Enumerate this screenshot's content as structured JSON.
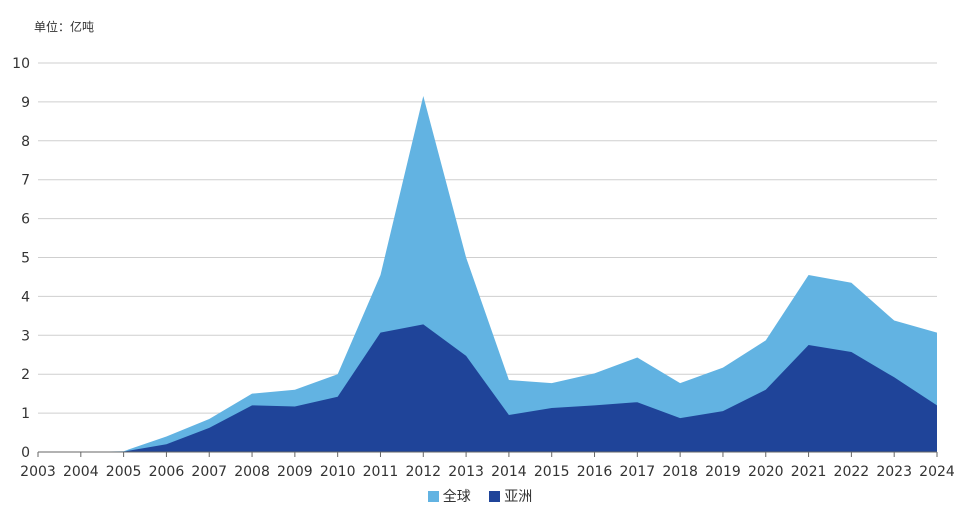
{
  "unit_label": "单位：亿吨",
  "colors": {
    "global": "#62b3e2",
    "asia": "#1f4499",
    "grid": "#cfcfcf",
    "axis": "#666666"
  },
  "chart_data": {
    "type": "area",
    "title": "",
    "ylabel": "单位：亿吨",
    "xlabel": "",
    "ylim": [
      0,
      10
    ],
    "yticks": [
      0,
      1,
      2,
      3,
      4,
      5,
      6,
      7,
      8,
      9,
      10
    ],
    "categories": [
      "2003",
      "2004",
      "2005",
      "2006",
      "2007",
      "2008",
      "2009",
      "2010",
      "2011",
      "2012",
      "2013",
      "2014",
      "2015",
      "2016",
      "2017",
      "2018",
      "2019",
      "2020",
      "2021",
      "2022",
      "2023",
      "2024"
    ],
    "series": [
      {
        "name": "全球",
        "values": [
          0,
          0,
          0.02,
          0.4,
          0.85,
          1.5,
          1.6,
          2.0,
          4.55,
          9.15,
          5.0,
          1.85,
          1.77,
          2.02,
          2.43,
          1.77,
          2.17,
          2.87,
          4.55,
          4.35,
          3.38,
          3.07
        ]
      },
      {
        "name": "亚洲",
        "values": [
          0,
          0,
          0.01,
          0.2,
          0.62,
          1.2,
          1.17,
          1.42,
          3.07,
          3.28,
          2.47,
          0.95,
          1.13,
          1.2,
          1.28,
          0.87,
          1.05,
          1.6,
          2.75,
          2.57,
          1.92,
          1.2
        ]
      }
    ],
    "legend_position": "bottom-center",
    "grid": true
  }
}
